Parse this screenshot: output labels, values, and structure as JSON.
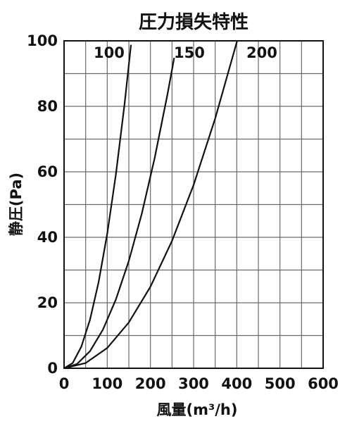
{
  "chart_data": {
    "type": "line",
    "title": "圧力損失特性",
    "xlabel": "風量(m³/h)",
    "ylabel": "静圧(Pa)",
    "xlim": [
      0,
      600
    ],
    "ylim": [
      0,
      100
    ],
    "x_ticks": [
      "0",
      "100",
      "200",
      "300",
      "400",
      "500",
      "600"
    ],
    "y_ticks": [
      "0",
      "20",
      "40",
      "60",
      "80",
      "100"
    ],
    "grid": true,
    "x_minor_step": 50,
    "y_minor_step": 10,
    "series": [
      {
        "name": "100",
        "x": [
          0,
          20,
          40,
          60,
          80,
          100,
          120,
          140,
          155
        ],
        "y": [
          0,
          1.6,
          6.6,
          14.8,
          26.3,
          41.1,
          59.2,
          80.6,
          98.8
        ]
      },
      {
        "name": "150",
        "x": [
          0,
          30,
          60,
          90,
          120,
          150,
          180,
          210,
          240,
          255
        ],
        "y": [
          0,
          1.3,
          5.2,
          11.8,
          21.0,
          32.8,
          47.2,
          64.3,
          84.0,
          94.8
        ]
      },
      {
        "name": "200",
        "x": [
          0,
          50,
          100,
          150,
          200,
          250,
          300,
          350,
          400,
          415
        ],
        "y": [
          0,
          1.6,
          6.2,
          14.0,
          24.9,
          38.9,
          56.0,
          76.3,
          99.6,
          107.2
        ]
      }
    ]
  }
}
